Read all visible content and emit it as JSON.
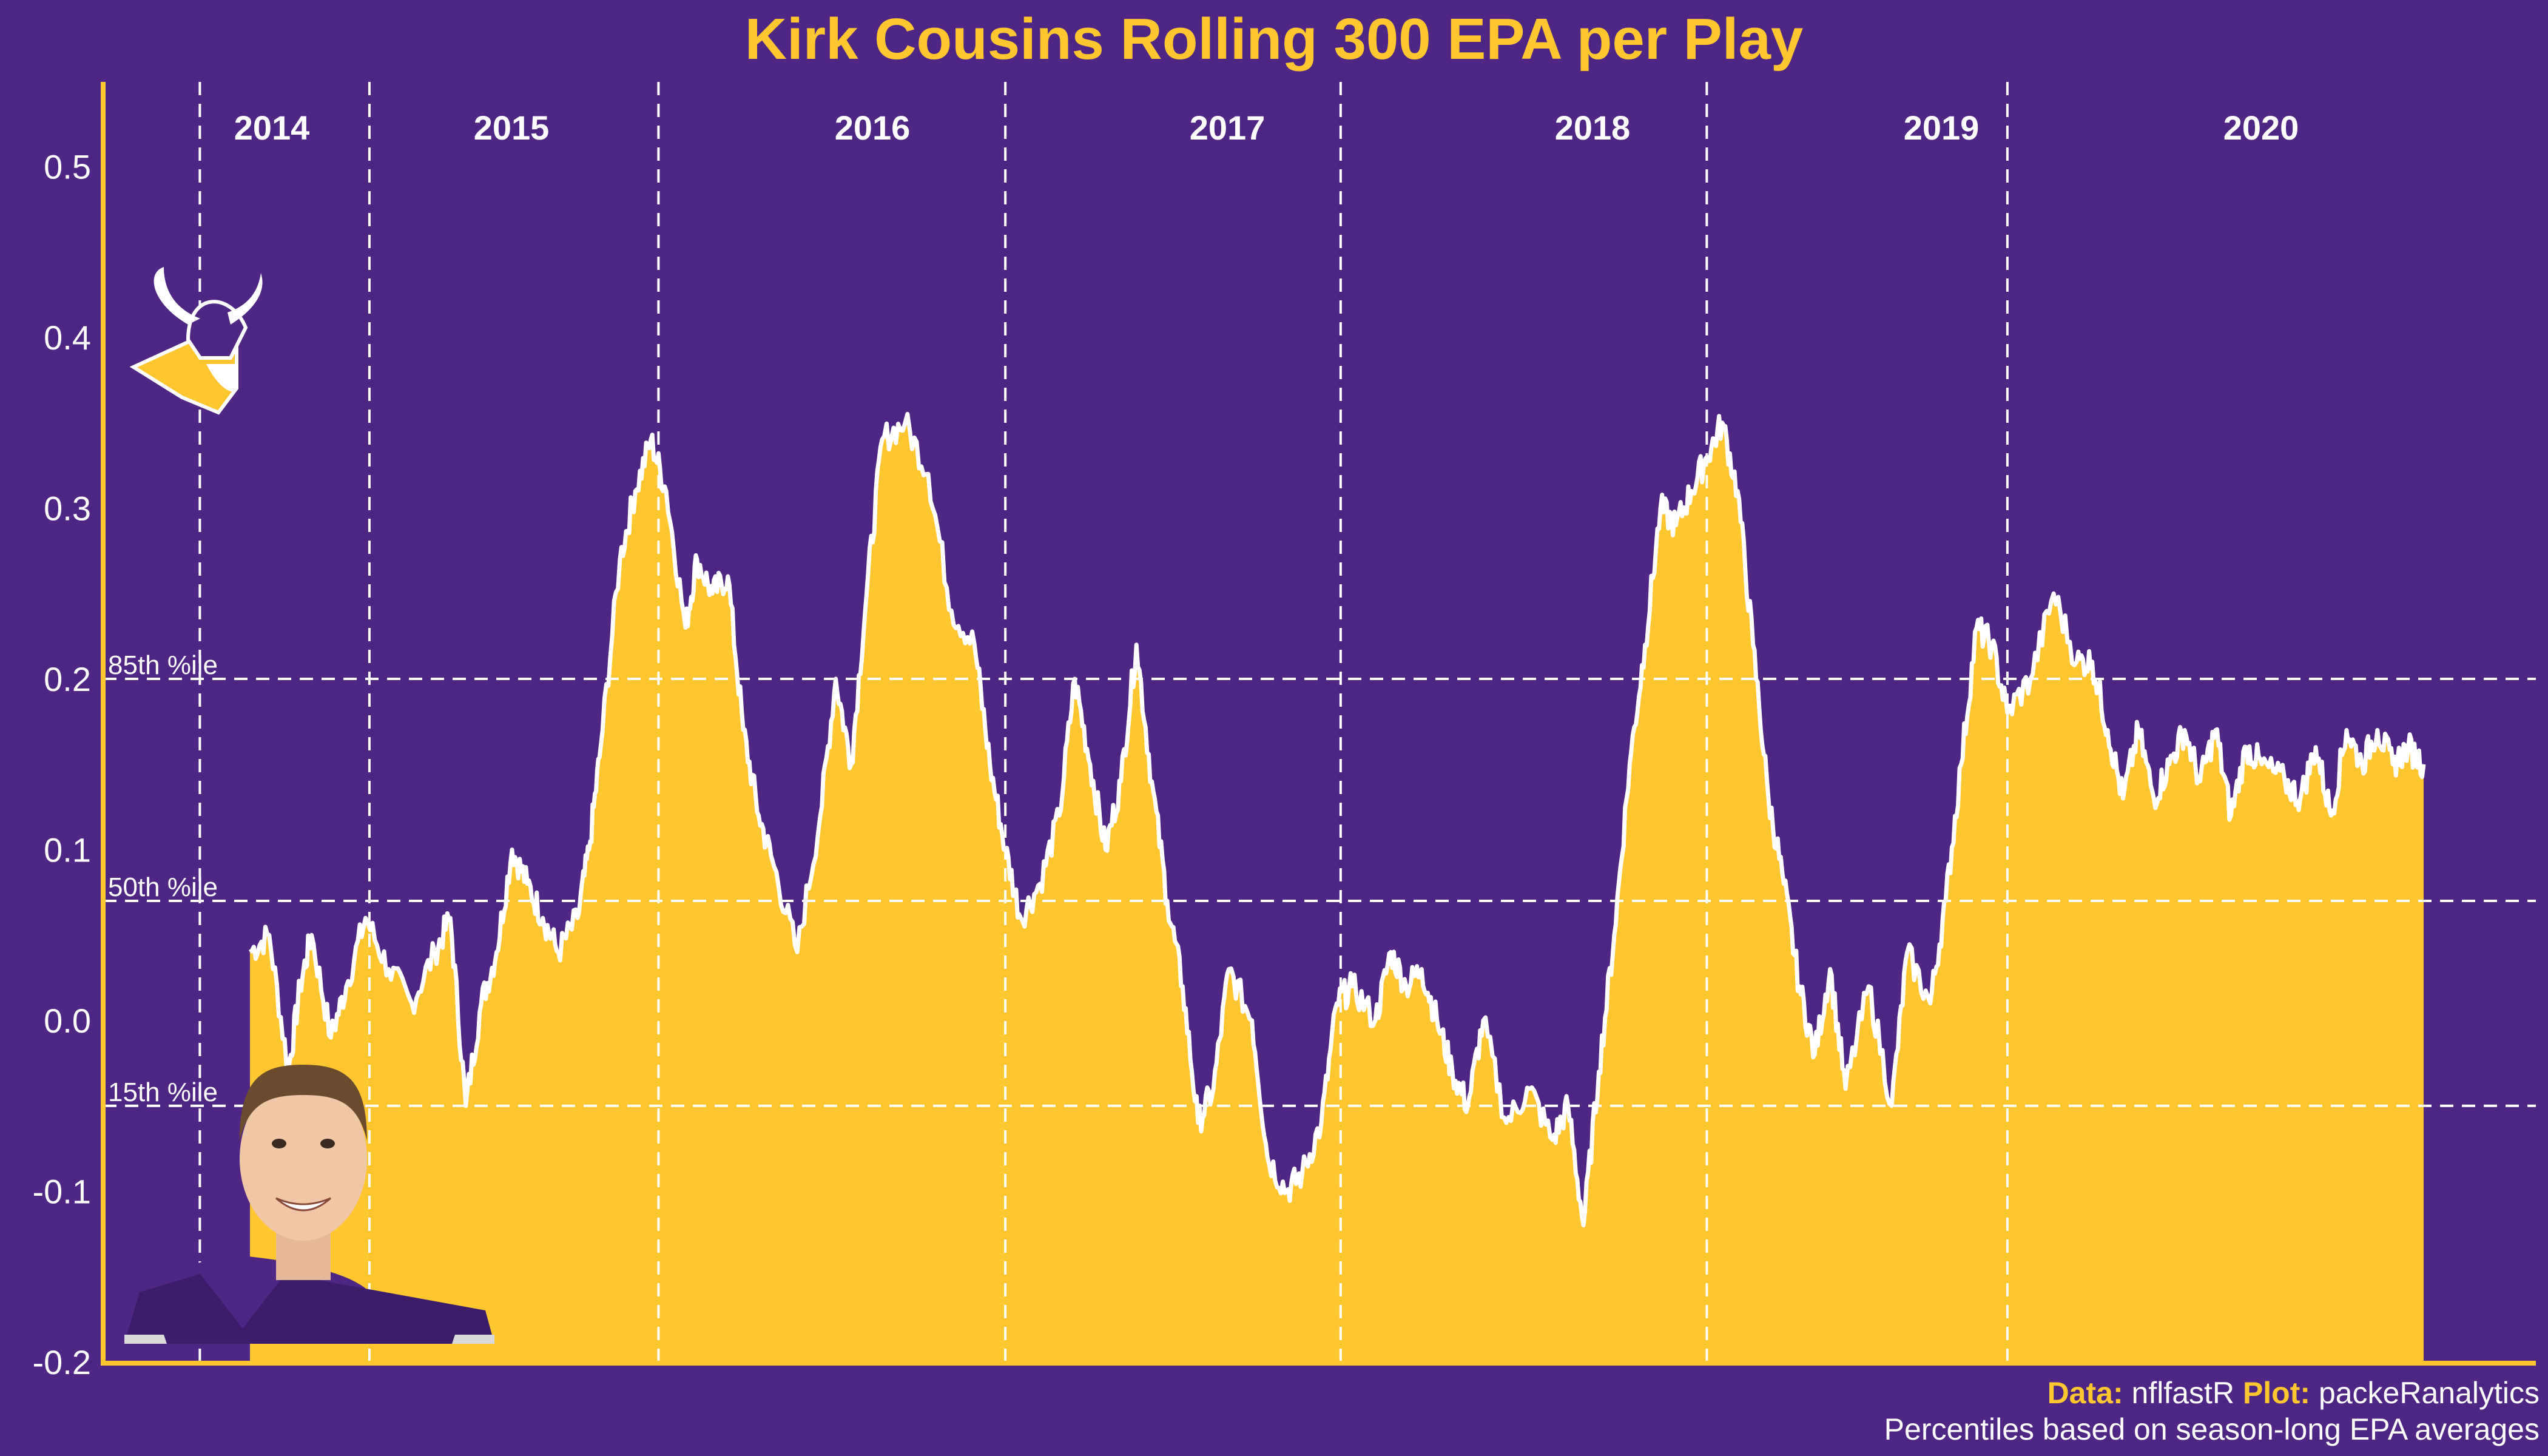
{
  "chart_data": {
    "type": "area",
    "title": "Kirk Cousins Rolling 300 EPA per Play",
    "xlabel": "",
    "ylabel": "",
    "ylim": [
      -0.2,
      0.55
    ],
    "yticks": [
      "0.5",
      "0.4",
      "0.3",
      "0.2",
      "0.1",
      "0.0",
      "-0.1",
      "-0.2"
    ],
    "ytick_values": [
      0.5,
      0.4,
      0.3,
      0.2,
      0.1,
      0.0,
      -0.1,
      -0.2
    ],
    "grid": false,
    "colors": {
      "background": "#4f2683",
      "fill": "#ffc62f",
      "line": "#ffffff",
      "axis": "#ffc62f"
    },
    "x_range": [
      0,
      5640
    ],
    "seasons": [
      {
        "label": "2014",
        "start": 0,
        "end": 310
      },
      {
        "label": "2015",
        "start": 310,
        "end": 1060
      },
      {
        "label": "2016",
        "start": 1060,
        "end": 1960
      },
      {
        "label": "2017",
        "start": 1960,
        "end": 2830
      },
      {
        "label": "2018",
        "start": 2830,
        "end": 3780
      },
      {
        "label": "2019",
        "start": 3780,
        "end": 4560
      },
      {
        "label": "2020",
        "start": 4560,
        "end": 5640
      }
    ],
    "percentiles": [
      {
        "label": "85th %ile",
        "value": 0.2
      },
      {
        "label": "50th %ile",
        "value": 0.07
      },
      {
        "label": "15th %ile",
        "value": -0.05
      }
    ],
    "x": [
      0,
      50,
      100,
      130,
      160,
      210,
      250,
      300,
      360,
      420,
      480,
      520,
      560,
      600,
      640,
      680,
      720,
      760,
      800,
      850,
      880,
      910,
      960,
      1000,
      1040,
      1080,
      1130,
      1160,
      1200,
      1240,
      1280,
      1320,
      1360,
      1420,
      1480,
      1520,
      1560,
      1600,
      1640,
      1700,
      1760,
      1820,
      1880,
      1920,
      1960,
      2000,
      2050,
      2100,
      2140,
      2180,
      2220,
      2260,
      2300,
      2340,
      2380,
      2420,
      2460,
      2500,
      2540,
      2600,
      2640,
      2690,
      2730,
      2780,
      2820,
      2860,
      2920,
      2960,
      3000,
      3040,
      3080,
      3120,
      3160,
      3200,
      3260,
      3320,
      3380,
      3420,
      3460,
      3500,
      3540,
      3580,
      3620,
      3660,
      3700,
      3740,
      3780,
      3820,
      3860,
      3900,
      3940,
      3980,
      4020,
      4060,
      4100,
      4140,
      4200,
      4260,
      4300,
      4360,
      4400,
      4440,
      4480,
      4520,
      4560,
      4620,
      4680,
      4740,
      4780,
      4820,
      4860,
      4900,
      4940,
      4980,
      5020,
      5060,
      5100,
      5140,
      5180,
      5220,
      5280,
      5320,
      5360,
      5400,
      5440,
      5480,
      5520,
      5560,
      5600,
      5640
    ],
    "y": [
      0.04,
      0.05,
      -0.03,
      0.02,
      0.05,
      -0.01,
      0.02,
      0.06,
      0.03,
      0.01,
      0.04,
      0.06,
      -0.05,
      0.01,
      0.04,
      0.1,
      0.08,
      0.06,
      0.04,
      0.06,
      0.1,
      0.16,
      0.27,
      0.31,
      0.34,
      0.31,
      0.23,
      0.27,
      0.25,
      0.26,
      0.17,
      0.12,
      0.09,
      0.04,
      0.12,
      0.2,
      0.15,
      0.25,
      0.34,
      0.35,
      0.32,
      0.24,
      0.22,
      0.15,
      0.1,
      0.06,
      0.08,
      0.12,
      0.2,
      0.15,
      0.1,
      0.14,
      0.22,
      0.14,
      0.07,
      0.02,
      -0.06,
      -0.04,
      0.03,
      0.0,
      -0.08,
      -0.1,
      -0.09,
      -0.06,
      0.01,
      0.02,
      0.0,
      0.04,
      0.02,
      0.03,
      0.0,
      -0.03,
      -0.05,
      0.0,
      -0.06,
      -0.04,
      -0.07,
      -0.05,
      -0.12,
      -0.03,
      0.05,
      0.15,
      0.22,
      0.3,
      0.29,
      0.31,
      0.33,
      0.35,
      0.31,
      0.22,
      0.13,
      0.08,
      0.02,
      -0.02,
      0.03,
      -0.04,
      0.02,
      -0.05,
      0.04,
      0.01,
      0.07,
      0.15,
      0.23,
      0.22,
      0.18,
      0.2,
      0.25,
      0.21,
      0.21,
      0.17,
      0.13,
      0.17,
      0.13,
      0.15,
      0.17,
      0.14,
      0.17,
      0.12,
      0.16,
      0.15,
      0.14,
      0.13,
      0.16,
      0.12,
      0.17,
      0.15,
      0.17,
      0.15,
      0.16,
      0.15
    ]
  },
  "caption": {
    "data_label": "Data:",
    "data_value": "nflfastR",
    "plot_label": "Plot:",
    "plot_value": "packeRanalytics",
    "note": "Percentiles based on season-long EPA averages"
  },
  "logo_icon": "vikings-logo-icon",
  "photo_icon": "player-headshot-icon"
}
